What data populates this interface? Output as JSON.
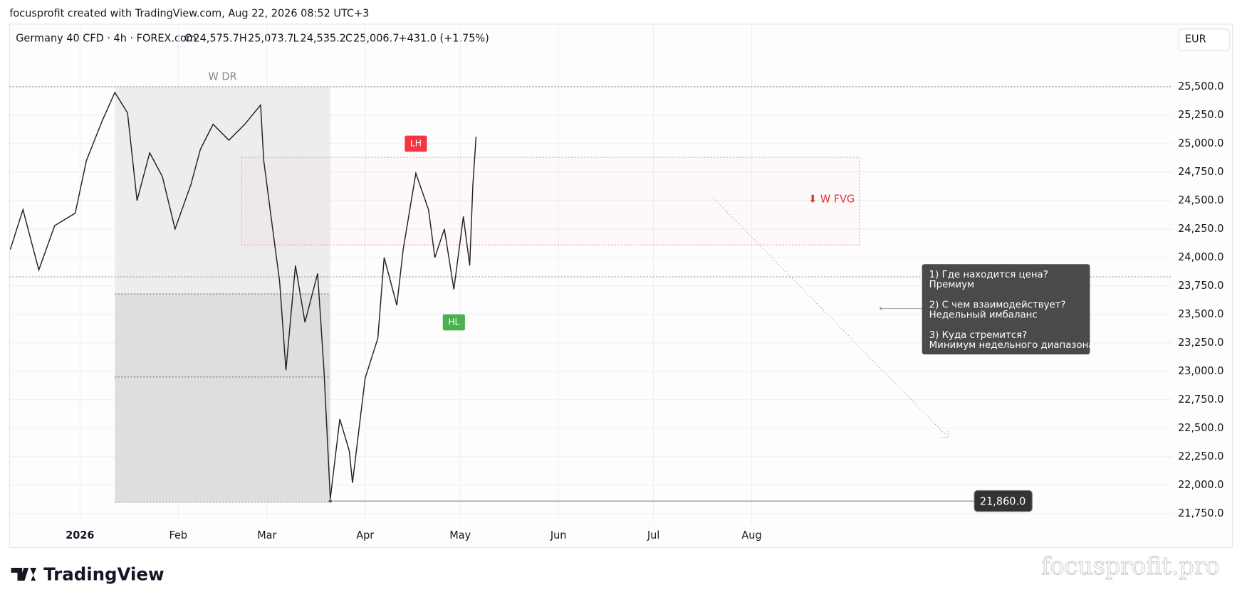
{
  "header": {
    "credit": "focusprofit created with TradingView.com, Aug 22, 2026 08:52 UTC+3",
    "brand": "TradingView",
    "watermark": "focusprofit.pro",
    "currency": "EUR"
  },
  "legend": {
    "symbol": "Germany 40 CFD · 4h · FOREX.com",
    "open_key": "O",
    "open": "24,575.7",
    "high_key": "H",
    "high": "25,073.7",
    "low_key": "L",
    "low": "24,535.2",
    "close_key": "C",
    "close": "25,006.7",
    "change": "+431.0 (+1.75%)"
  },
  "chart_data": {
    "type": "line",
    "color": "#222222",
    "x": [
      -22,
      -18,
      -13,
      -8,
      -1.5,
      2,
      7,
      11,
      15,
      18,
      22,
      26,
      30,
      35,
      38,
      42,
      47,
      52,
      57,
      58,
      61,
      63,
      65,
      68,
      71,
      75,
      77,
      79,
      82,
      85,
      86,
      90,
      94,
      96,
      100,
      102,
      106,
      110,
      112,
      115,
      118,
      121,
      123,
      124,
      125
    ],
    "values": [
      24070,
      24420,
      23890,
      24280,
      24390,
      24850,
      25200,
      25450,
      25270,
      24500,
      24920,
      24710,
      24250,
      24640,
      24950,
      25170,
      25030,
      25170,
      25340,
      24850,
      24210,
      23790,
      23010,
      23930,
      23430,
      23860,
      23010,
      21880,
      22580,
      22300,
      22020,
      22940,
      23290,
      24000,
      23580,
      24070,
      24740,
      24420,
      24000,
      24250,
      23720,
      24360,
      23930,
      24640,
      25060
    ],
    "xlim": [
      -22.25,
      344.75
    ],
    "xticks": [
      {
        "value": 0,
        "label": "2026"
      },
      {
        "value": 31,
        "label": "Feb"
      },
      {
        "value": 59,
        "label": "Mar"
      },
      {
        "value": 90,
        "label": "Apr"
      },
      {
        "value": 120,
        "label": "May"
      },
      {
        "value": 151,
        "label": "Jun"
      },
      {
        "value": 181,
        "label": "Jul"
      },
      {
        "value": 212,
        "label": "Aug"
      }
    ],
    "ylim": [
      21450,
      26050
    ],
    "yticks": [
      {
        "value": 21750,
        "label": "21,750.0"
      },
      {
        "value": 22000,
        "label": "22,000.0"
      },
      {
        "value": 22250,
        "label": "22,250.0"
      },
      {
        "value": 22500,
        "label": "22,500.0"
      },
      {
        "value": 22750,
        "label": "22,750.0"
      },
      {
        "value": 23000,
        "label": "23,000.0"
      },
      {
        "value": 23250,
        "label": "23,250.0"
      },
      {
        "value": 23500,
        "label": "23,500.0"
      },
      {
        "value": 23750,
        "label": "23,750.0"
      },
      {
        "value": 24000,
        "label": "24,000.0"
      },
      {
        "value": 24250,
        "label": "24,250.0"
      },
      {
        "value": 24500,
        "label": "24,500.0"
      },
      {
        "value": 24750,
        "label": "24,750.0"
      },
      {
        "value": 25000,
        "label": "25,000.0"
      },
      {
        "value": 25250,
        "label": "25,250.0"
      },
      {
        "value": 25500,
        "label": "25,500.0"
      }
    ],
    "grid": true,
    "wdr": {
      "label": "W DR",
      "x": [
        11,
        79
      ],
      "y": [
        21850,
        25500
      ],
      "levels": [
        23680,
        22950
      ]
    },
    "fvg": {
      "label": "⬇ W FVG",
      "x": [
        51,
        246
      ],
      "y": [
        24110,
        24880
      ]
    },
    "levels": [
      25500,
      23830
    ],
    "lh": {
      "label": "LH",
      "x": 106,
      "y": 25000
    },
    "hl": {
      "label": "HL",
      "x": 118,
      "y": 23430
    },
    "last_price": {
      "value": 21860,
      "label": "21,860.0"
    },
    "arrow": {
      "x": [
        200,
        274
      ],
      "y": [
        24520,
        22420
      ]
    },
    "note": [
      [
        "1) Где находится цена?",
        "Премиум"
      ],
      [
        "2) С чем взаимодействует?",
        "Недельный имбаланс"
      ],
      [
        "3) Куда стремится?",
        "Минимум недельного диапазона"
      ]
    ]
  }
}
